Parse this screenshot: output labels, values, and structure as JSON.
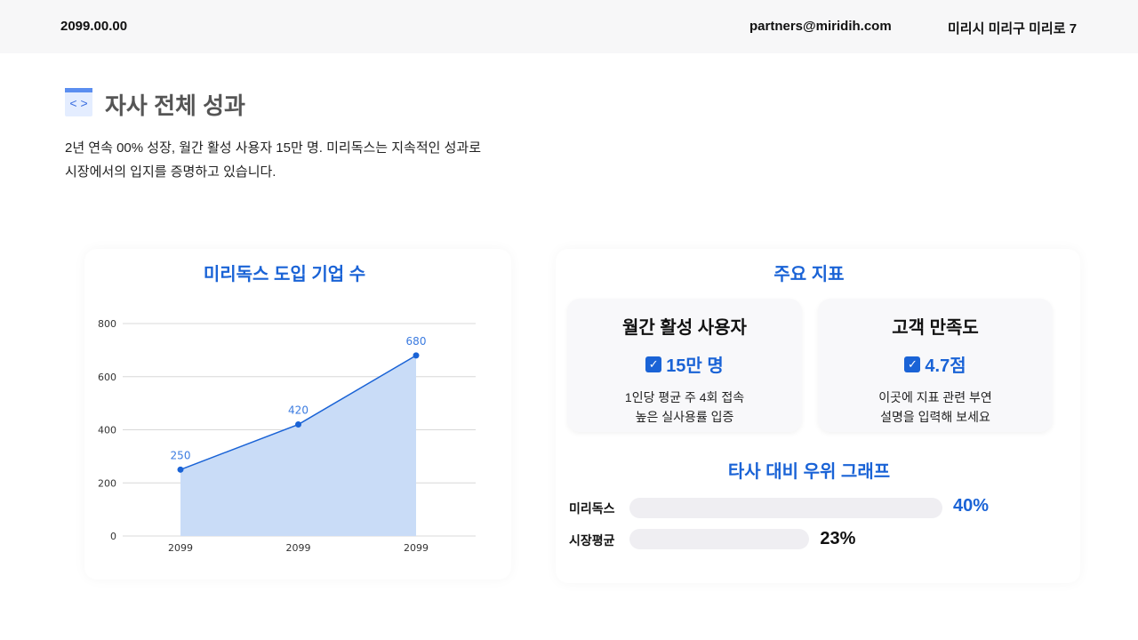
{
  "header": {
    "date": "2099.00.00",
    "email": "partners@miridih.com",
    "address": "미리시 미리구 미리로 7"
  },
  "page": {
    "title": "자사 전체 성과",
    "icon": "code-window-icon",
    "description_lines": [
      "2년 연속 00% 성장, 월간 활성 사용자 15만 명. 미리독스는 지속적인 성과로",
      "시장에서의 입지를 증명하고 있습니다."
    ]
  },
  "chart_data": {
    "type": "area",
    "title": "미리독스 도입 기업 수",
    "categories": [
      "2099",
      "2099",
      "2099"
    ],
    "values": [
      250,
      420,
      680
    ],
    "data_labels": [
      "250",
      "420",
      "680"
    ],
    "ylim": [
      0,
      800
    ],
    "yticks": [
      "0",
      "200",
      "400",
      "600",
      "800"
    ],
    "grid": true,
    "color": "#1a63d6",
    "fill": "#c9dcf7"
  },
  "metrics": {
    "title": "주요 지표",
    "cards": [
      {
        "title": "월간 활성 사용자",
        "value": "15만 명",
        "icon": "checkbox-icon",
        "desc": [
          "1인당 평균 주 4회 접속",
          "높은 실사용률 입증"
        ]
      },
      {
        "title": "고객 만족도",
        "value": "4.7점",
        "icon": "checkbox-icon",
        "desc": [
          "이곳에 지표 관련 부연",
          "설명을 입력해 보세요"
        ]
      }
    ]
  },
  "comparison": {
    "title": "타사 대비 우위 그래프",
    "bars": [
      {
        "label": "미리독스",
        "value": 40,
        "text": "40%",
        "color": "#1a63d6"
      },
      {
        "label": "시장평균",
        "value": 23,
        "text": "23%",
        "color": "#111111"
      }
    ]
  }
}
